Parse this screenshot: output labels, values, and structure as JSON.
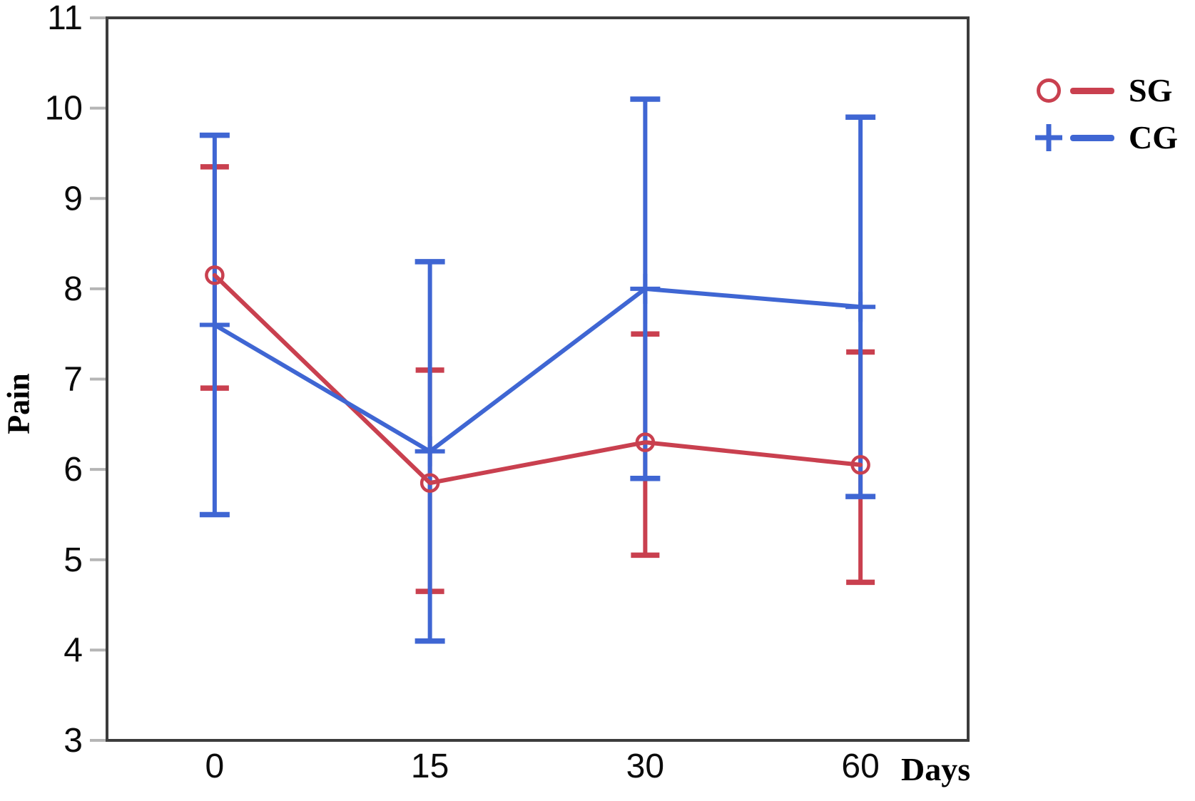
{
  "chart_data": {
    "type": "line",
    "x_categories": [
      "0",
      "15",
      "30",
      "60"
    ],
    "xlabel": "Days",
    "ylabel": "Pain",
    "y_ticks": [
      3,
      4,
      5,
      6,
      7,
      8,
      9,
      10,
      11
    ],
    "ylim": [
      3,
      11
    ],
    "grid": false,
    "error_bars": true,
    "series": [
      {
        "name": "SG",
        "color": "#c9404f",
        "marker": "circle",
        "values": [
          8.15,
          5.85,
          6.3,
          6.05
        ],
        "ci_low": [
          6.9,
          4.65,
          5.05,
          4.75
        ],
        "ci_high": [
          9.35,
          7.1,
          7.5,
          7.3
        ]
      },
      {
        "name": "CG",
        "color": "#3f66d3",
        "marker": "plus",
        "values": [
          7.6,
          6.2,
          8.0,
          7.8
        ],
        "ci_low": [
          5.5,
          4.1,
          5.9,
          5.7
        ],
        "ci_high": [
          9.7,
          8.3,
          10.1,
          9.9
        ]
      }
    ],
    "legend": {
      "position": "top-right",
      "entries": [
        {
          "label": "SG",
          "marker": "circle",
          "color": "#c9404f"
        },
        {
          "label": "CG",
          "marker": "plus",
          "color": "#3f66d3"
        }
      ]
    },
    "axis": {
      "border_color": "#3c3c3c",
      "tick_color": "#b5b5b5",
      "label_color": "#0b0b0b"
    }
  }
}
